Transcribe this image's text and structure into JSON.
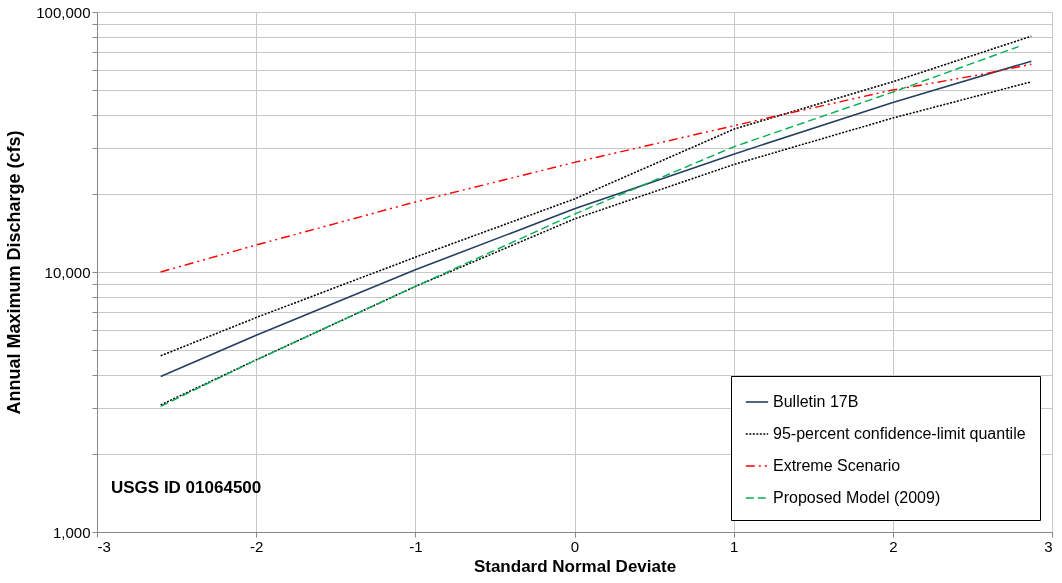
{
  "chart_data": {
    "type": "line",
    "xlabel": "Standard Normal Deviate",
    "ylabel": "Annual Maximum Discharge (cfs)",
    "x": [
      -2.6,
      -2,
      -1,
      0,
      1,
      2,
      2.87
    ],
    "series": [
      {
        "name": "Bulletin 17B",
        "color": "#243f60",
        "line_style": "solid",
        "values": [
          3960,
          5710,
          10200,
          17500,
          28400,
          44900,
          64700
        ]
      },
      {
        "name": "95-percent confidence-limit quantile",
        "color": "#000000",
        "line_style": "dotted",
        "values": [
          4760,
          6680,
          11400,
          19100,
          35400,
          53900,
          80700
        ]
      },
      {
        "color": "#000000",
        "line_style": "dotted",
        "values": [
          3080,
          4590,
          8800,
          16000,
          25900,
          39100,
          53900
        ]
      },
      {
        "name": "Extreme Scenario",
        "color": "#ff0000",
        "line_style": "dashdot",
        "x": [
          -2.6,
          -2,
          -1,
          0,
          1.18,
          1.99,
          2.55,
          2.87
        ],
        "values": [
          10000,
          12700,
          18600,
          26400,
          38700,
          50000,
          57400,
          63000
        ]
      },
      {
        "name": "Proposed Model (2009)",
        "color": "#00b050",
        "line_style": "dashed",
        "x": [
          -2.6,
          -2,
          -1,
          0,
          1,
          2,
          2.79
        ],
        "values": [
          3040,
          4590,
          8800,
          16700,
          30300,
          49200,
          73600
        ]
      }
    ],
    "xlim": [
      -3,
      3
    ],
    "xticks": [
      -3,
      -2,
      -1,
      0,
      1,
      2,
      3
    ],
    "ylim": [
      1000,
      100000
    ],
    "yticks": [
      {
        "value": 1000,
        "label": "1,000"
      },
      {
        "value": 2000,
        "label": null
      },
      {
        "value": 3000,
        "label": null
      },
      {
        "value": 4000,
        "label": null
      },
      {
        "value": 5000,
        "label": null
      },
      {
        "value": 6000,
        "label": null
      },
      {
        "value": 7000,
        "label": null
      },
      {
        "value": 8000,
        "label": null
      },
      {
        "value": 9000,
        "label": null
      },
      {
        "value": 10000,
        "label": "10,000"
      },
      {
        "value": 20000,
        "label": null
      },
      {
        "value": 30000,
        "label": null
      },
      {
        "value": 40000,
        "label": null
      },
      {
        "value": 50000,
        "label": null
      },
      {
        "value": 60000,
        "label": null
      },
      {
        "value": 70000,
        "label": null
      },
      {
        "value": 80000,
        "label": null
      },
      {
        "value": 90000,
        "label": null
      },
      {
        "value": 100000,
        "label": "100,000"
      }
    ],
    "log": "y",
    "grid": true,
    "legend": "bottom right",
    "annotations": [
      "USGS ID 01064500"
    ]
  }
}
